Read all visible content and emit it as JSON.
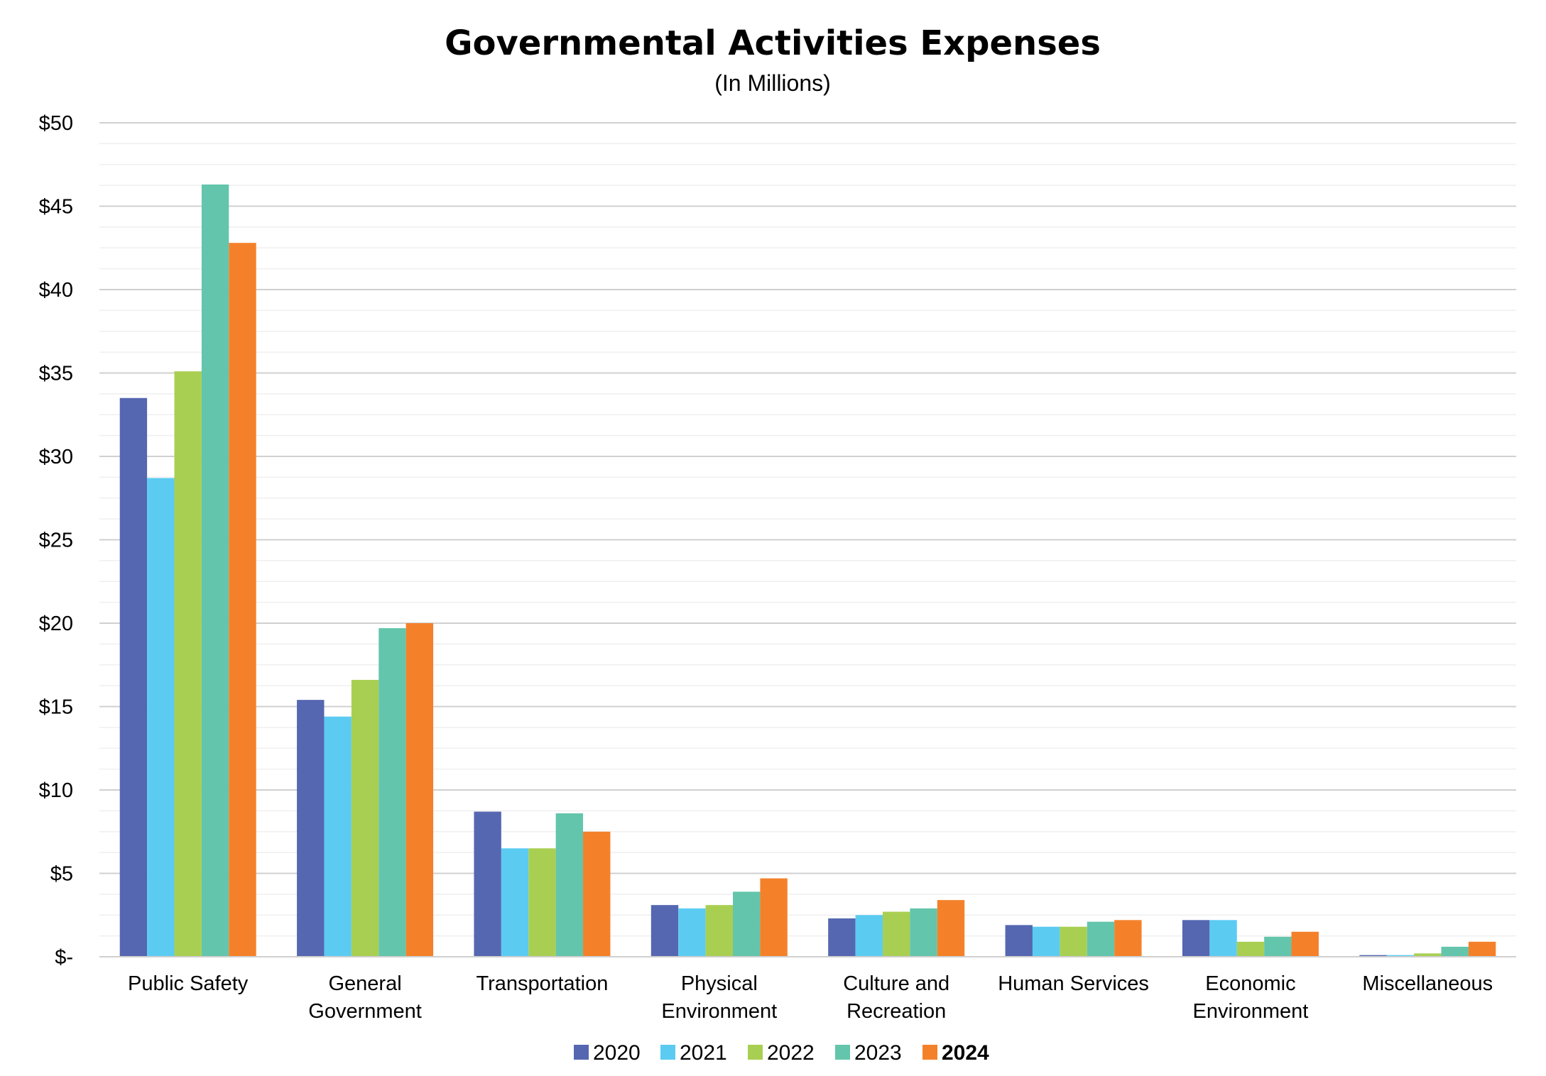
{
  "chart_data": {
    "type": "bar",
    "title": "Governmental Activities Expenses",
    "subtitle": "(In Millions)",
    "xlabel": "",
    "ylabel": "",
    "ylim": [
      0,
      50
    ],
    "yticks": [
      0,
      5,
      10,
      15,
      20,
      25,
      30,
      35,
      40,
      45,
      50
    ],
    "ytick_labels": [
      "$-",
      "$5",
      "$10",
      "$15",
      "$20",
      "$25",
      "$30",
      "$35",
      "$40",
      "$45",
      "$50"
    ],
    "grid": true,
    "legend_position": "bottom-center",
    "categories": [
      [
        "Public Safety"
      ],
      [
        "General",
        "Government"
      ],
      [
        "Transportation"
      ],
      [
        "Physical",
        "Environment"
      ],
      [
        "Culture and",
        "Recreation"
      ],
      [
        "Human Services"
      ],
      [
        "Economic",
        "Environment"
      ],
      [
        "Miscellaneous"
      ]
    ],
    "series": [
      {
        "name": "2020",
        "color": "#5567b1",
        "bold": false,
        "values": [
          33.5,
          15.4,
          8.7,
          3.1,
          2.3,
          1.9,
          2.2,
          0.1
        ]
      },
      {
        "name": "2021",
        "color": "#5bcbf2",
        "bold": false,
        "values": [
          28.7,
          14.4,
          6.5,
          2.9,
          2.5,
          1.8,
          2.2,
          0.1
        ]
      },
      {
        "name": "2022",
        "color": "#a9cf52",
        "bold": false,
        "values": [
          35.1,
          16.6,
          6.5,
          3.1,
          2.7,
          1.8,
          0.9,
          0.2
        ]
      },
      {
        "name": "2023",
        "color": "#63c5ac",
        "bold": false,
        "values": [
          46.3,
          19.7,
          8.6,
          3.9,
          2.9,
          2.1,
          1.2,
          0.6
        ]
      },
      {
        "name": "2024",
        "color": "#f4812a",
        "bold": true,
        "values": [
          42.8,
          20.0,
          7.5,
          4.7,
          3.4,
          2.2,
          1.5,
          0.9
        ]
      }
    ]
  }
}
